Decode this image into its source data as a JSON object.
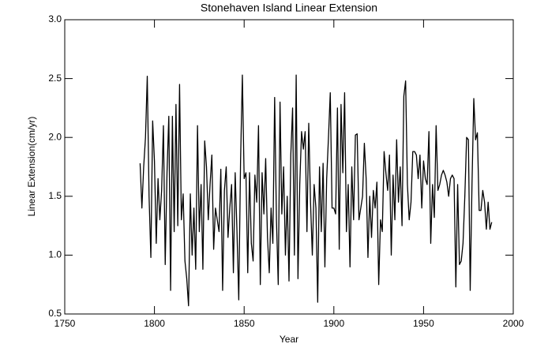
{
  "chart_data": {
    "type": "line",
    "title": "Stonehaven Island Linear Extension",
    "xlabel": "Year",
    "ylabel": "Linear Extension(cm/yr)",
    "xlim": [
      1750,
      2000
    ],
    "xticks": [
      1750,
      1800,
      1850,
      1900,
      1950,
      2000
    ],
    "ylim": [
      0.5,
      3.0
    ],
    "yticks": [
      0.5,
      {
        "value": 1.0,
        "label": "1.0"
      },
      1.5,
      {
        "value": 2.0,
        "label": "2.0"
      },
      2.5,
      {
        "value": 3.0,
        "label": "3.0"
      }
    ],
    "grid": false,
    "x": [
      1792,
      1793,
      1794,
      1795,
      1796,
      1797,
      1798,
      1799,
      1800,
      1801,
      1802,
      1803,
      1804,
      1805,
      1806,
      1807,
      1808,
      1809,
      1810,
      1811,
      1812,
      1813,
      1814,
      1815,
      1816,
      1817,
      1818,
      1819,
      1820,
      1821,
      1822,
      1823,
      1824,
      1825,
      1826,
      1827,
      1828,
      1829,
      1830,
      1831,
      1832,
      1833,
      1834,
      1835,
      1836,
      1837,
      1838,
      1839,
      1840,
      1841,
      1842,
      1843,
      1844,
      1845,
      1846,
      1847,
      1848,
      1849,
      1850,
      1851,
      1852,
      1853,
      1854,
      1855,
      1856,
      1857,
      1858,
      1859,
      1860,
      1861,
      1862,
      1863,
      1864,
      1865,
      1866,
      1867,
      1868,
      1869,
      1870,
      1871,
      1872,
      1873,
      1874,
      1875,
      1876,
      1877,
      1878,
      1879,
      1880,
      1881,
      1882,
      1883,
      1884,
      1885,
      1886,
      1887,
      1888,
      1889,
      1890,
      1891,
      1892,
      1893,
      1894,
      1895,
      1896,
      1897,
      1898,
      1899,
      1900,
      1901,
      1902,
      1903,
      1904,
      1905,
      1906,
      1907,
      1908,
      1909,
      1910,
      1911,
      1912,
      1913,
      1914,
      1915,
      1916,
      1917,
      1918,
      1919,
      1920,
      1921,
      1922,
      1923,
      1924,
      1925,
      1926,
      1927,
      1928,
      1929,
      1930,
      1931,
      1932,
      1933,
      1934,
      1935,
      1936,
      1937,
      1938,
      1939,
      1940,
      1941,
      1942,
      1943,
      1944,
      1945,
      1946,
      1947,
      1948,
      1949,
      1950,
      1951,
      1952,
      1953,
      1954,
      1955,
      1956,
      1957,
      1958,
      1959,
      1960,
      1961,
      1962,
      1963,
      1964,
      1965,
      1966,
      1967,
      1968,
      1969,
      1970,
      1971,
      1972,
      1973,
      1974,
      1975,
      1976,
      1977,
      1978,
      1979,
      1980,
      1981,
      1982,
      1983,
      1984,
      1985,
      1986,
      1987,
      1988
    ],
    "series": [
      {
        "color": "#000000",
        "values": [
          1.78,
          1.4,
          1.75,
          2.0,
          2.52,
          1.5,
          0.98,
          2.14,
          1.8,
          1.1,
          1.65,
          1.3,
          1.55,
          2.1,
          0.92,
          1.7,
          2.18,
          0.7,
          2.18,
          1.2,
          2.28,
          1.25,
          2.45,
          1.3,
          1.52,
          0.95,
          0.8,
          0.57,
          1.52,
          1.0,
          1.4,
          0.88,
          2.1,
          1.2,
          1.6,
          0.88,
          1.97,
          1.75,
          1.3,
          1.6,
          1.85,
          1.05,
          1.4,
          1.3,
          1.2,
          1.73,
          0.7,
          1.55,
          1.75,
          1.15,
          1.4,
          1.6,
          0.85,
          1.7,
          1.2,
          0.62,
          1.8,
          2.53,
          1.65,
          1.7,
          0.85,
          1.7,
          1.1,
          0.95,
          1.68,
          1.45,
          2.1,
          0.75,
          1.7,
          1.35,
          1.82,
          1.15,
          0.85,
          1.4,
          1.1,
          2.34,
          1.3,
          0.75,
          2.3,
          1.35,
          1.75,
          1.0,
          1.5,
          0.78,
          1.85,
          2.25,
          1.0,
          2.53,
          0.8,
          1.6,
          2.05,
          1.9,
          2.05,
          1.2,
          2.12,
          1.45,
          1.0,
          1.6,
          1.4,
          0.6,
          1.75,
          1.2,
          1.78,
          0.9,
          1.65,
          2.0,
          2.38,
          1.4,
          1.4,
          1.35,
          2.25,
          1.05,
          2.28,
          1.7,
          2.38,
          1.2,
          1.6,
          0.9,
          1.75,
          1.3,
          2.02,
          2.03,
          1.3,
          1.4,
          1.5,
          1.95,
          1.65,
          0.98,
          1.5,
          1.15,
          1.55,
          1.4,
          1.62,
          0.75,
          1.3,
          1.2,
          1.88,
          1.7,
          1.55,
          1.85,
          1.0,
          1.68,
          1.3,
          1.98,
          1.45,
          1.75,
          1.25,
          2.35,
          2.48,
          1.6,
          1.3,
          1.45,
          1.88,
          1.88,
          1.85,
          1.65,
          1.85,
          1.4,
          1.8,
          1.65,
          1.6,
          2.05,
          1.1,
          1.6,
          1.32,
          2.1,
          1.55,
          1.6,
          1.68,
          1.72,
          1.68,
          1.62,
          1.5,
          1.65,
          1.68,
          1.65,
          0.73,
          1.6,
          0.92,
          0.95,
          1.1,
          1.5,
          2.0,
          1.98,
          0.7,
          1.6,
          2.33,
          1.98,
          2.04,
          1.38,
          1.38,
          1.55,
          1.45,
          1.22,
          1.45,
          1.22,
          1.28
        ]
      }
    ]
  }
}
